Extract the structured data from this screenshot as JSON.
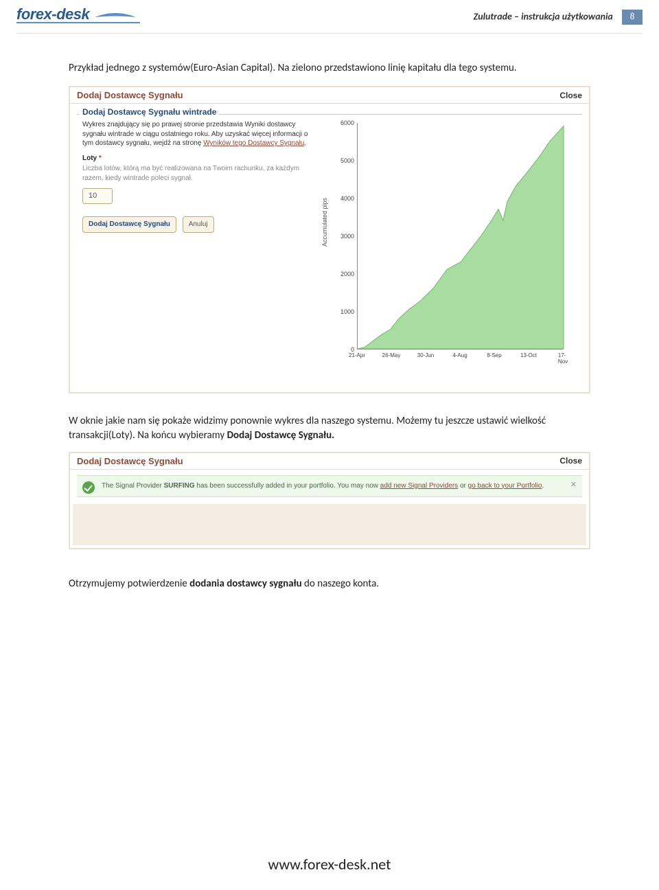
{
  "header": {
    "logo_text": "forex-desk",
    "right_text": "Zulutrade – instrukcja użytkowania",
    "page_number": "8",
    "swoosh_color": "#5a8fc4"
  },
  "para1": "Przykład jednego z systemów(Euro-Asian Capital). Na zielono przedstawiono linię kapitału dla tego systemu.",
  "shot1": {
    "title": "Dodaj Dostawcę Sygnału",
    "close": "Close",
    "legend": "Dodaj Dostawcę Sygnału wintrade",
    "desc_prefix": "Wykres znajdujący się po prawej stronie przedstawia Wyniki dostawcy sygnału wintrade w ciągu ostatniego roku. Aby uzyskać więcej informacji o tym dostawcy sygnału, wejdź na stronę ",
    "desc_link": "Wyników tego Dostawcy Sygnału",
    "desc_suffix": ".",
    "loty_label": "Loty",
    "loty_star": "*",
    "loty_help": "Liczba lotów, którą ma być realizowana na Twoim rachunku, za każdym razem, kiedy wintrade poleci sygnał.",
    "loty_value": "10",
    "btn_add": "Dodaj Dostawcę Sygnału",
    "btn_cancel": "Anuluj",
    "chart": {
      "type": "area",
      "ylabel": "Accumulated pips",
      "ymin": 0,
      "ymax": 6000,
      "ytick_step": 1000,
      "yticks": [
        "0",
        "1000",
        "2000",
        "3000",
        "4000",
        "5000",
        "6000"
      ],
      "xticks": [
        "21-Apr",
        "26-May",
        "30-Jun",
        "4-Aug",
        "8-Sep",
        "13-Oct",
        "17-Nov"
      ],
      "fill_color": "#a8dca0",
      "stroke_color": "#6fb86a",
      "background": "#ffffff",
      "axis_color": "#777777",
      "tick_font_size": 9,
      "points_x": [
        0,
        10,
        20,
        35,
        48,
        60,
        75,
        90,
        110,
        130,
        150,
        165,
        180,
        195,
        205,
        212,
        218,
        230,
        248,
        265,
        280,
        300
      ],
      "points_y": [
        0,
        40,
        180,
        380,
        520,
        800,
        1050,
        1250,
        1600,
        2100,
        2300,
        2650,
        3000,
        3400,
        3700,
        3400,
        3900,
        4300,
        4700,
        5100,
        5500,
        5900
      ]
    }
  },
  "para2_prefix": "W oknie jakie nam się pokaże widzimy ponownie wykres dla naszego systemu. Możemy tu jeszcze ustawić wielkość transakcji(Loty). Na końcu wybieramy ",
  "para2_bold": "Dodaj Dostawcę Sygnału.",
  "shot2": {
    "title": "Dodaj Dostawcę Sygnału",
    "close": "Close",
    "msg_prefix": "The Signal Provider ",
    "msg_bold": "SURFING",
    "msg_mid": " has been successfully added in your portfolio. You may now ",
    "msg_link1": "add new Signal Providers",
    "msg_or": " or ",
    "msg_link2": "go back to your Portfolio",
    "msg_suffix": "."
  },
  "para3_prefix": "Otrzymujemy potwierdzenie ",
  "para3_bold": "dodania dostawcy sygnału",
  "para3_suffix": " do naszego konta.",
  "footer_url": "www.forex-desk.net"
}
